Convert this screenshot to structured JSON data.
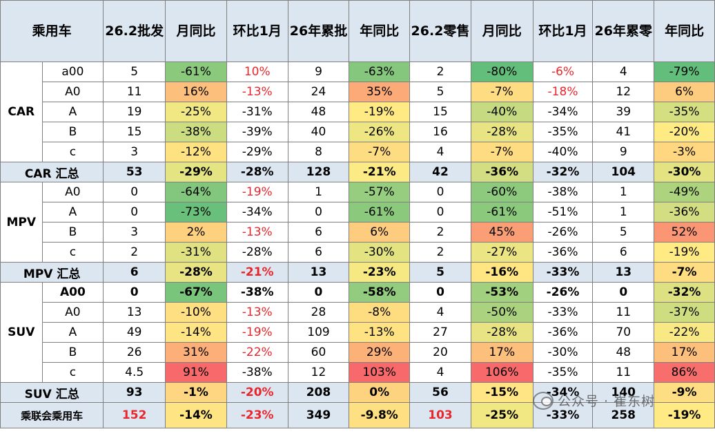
{
  "table": {
    "headers": [
      "乘用车",
      "26.2批发",
      "月同比",
      "环比1月",
      "26年累批",
      "年同比",
      "26.2零售",
      "月同比",
      "环比1月",
      "26年累零",
      "年同比"
    ],
    "groups": [
      {
        "name": "CAR",
        "rows": [
          {
            "sub": "a00",
            "c": [
              "5",
              "-61%",
              "10%",
              "9",
              "-63%",
              "2",
              "-80%",
              "-6%",
              "4",
              "-79%"
            ]
          },
          {
            "sub": "A0",
            "c": [
              "11",
              "16%",
              "-13%",
              "24",
              "35%",
              "5",
              "-7%",
              "-18%",
              "12",
              "6%"
            ]
          },
          {
            "sub": "A",
            "c": [
              "19",
              "-25%",
              "-31%",
              "48",
              "-19%",
              "15",
              "-40%",
              "-34%",
              "39",
              "-35%"
            ]
          },
          {
            "sub": "B",
            "c": [
              "15",
              "-38%",
              "-39%",
              "40",
              "-26%",
              "16",
              "-28%",
              "-35%",
              "41",
              "-20%"
            ]
          },
          {
            "sub": "c",
            "c": [
              "3",
              "-12%",
              "-29%",
              "8",
              "-7%",
              "4",
              "-7%",
              "-40%",
              "9",
              "-3%"
            ]
          }
        ],
        "summary": {
          "label": "CAR 汇总",
          "c": [
            "53",
            "-29%",
            "-28%",
            "128",
            "-21%",
            "42",
            "-36%",
            "-32%",
            "104",
            "-30%"
          ]
        }
      },
      {
        "name": "MPV",
        "rows": [
          {
            "sub": "A0",
            "c": [
              "0",
              "-64%",
              "-19%",
              "1",
              "-57%",
              "0",
              "-60%",
              "-38%",
              "1",
              "-49%"
            ]
          },
          {
            "sub": "A",
            "c": [
              "0",
              "-73%",
              "-34%",
              "0",
              "-61%",
              "0",
              "-61%",
              "-51%",
              "1",
              "-36%"
            ]
          },
          {
            "sub": "B",
            "c": [
              "3",
              "2%",
              "-13%",
              "6",
              "6%",
              "2",
              "45%",
              "-26%",
              "5",
              "52%"
            ]
          },
          {
            "sub": "c",
            "c": [
              "2",
              "-31%",
              "-28%",
              "6",
              "-30%",
              "2",
              "-27%",
              "-36%",
              "6",
              "-19%"
            ]
          }
        ],
        "summary": {
          "label": "MPV 汇总",
          "c": [
            "6",
            "-28%",
            "-21%",
            "13",
            "-23%",
            "5",
            "-16%",
            "-33%",
            "13",
            "-7%"
          ]
        }
      },
      {
        "name": "SUV",
        "rows": [
          {
            "sub": "A00",
            "c": [
              "0",
              "-67%",
              "-38%",
              "0",
              "-58%",
              "0",
              "-53%",
              "-26%",
              "0",
              "-32%"
            ]
          },
          {
            "sub": "A0",
            "c": [
              "13",
              "-10%",
              "-13%",
              "28",
              "-8%",
              "4",
              "-50%",
              "-33%",
              "11",
              "-37%"
            ]
          },
          {
            "sub": "A",
            "c": [
              "49",
              "-14%",
              "-19%",
              "109",
              "-13%",
              "27",
              "-28%",
              "-36%",
              "70",
              "-22%"
            ]
          },
          {
            "sub": "B",
            "c": [
              "26",
              "31%",
              "-22%",
              "60",
              "29%",
              "20",
              "17%",
              "-30%",
              "48",
              "17%"
            ]
          },
          {
            "sub": "c",
            "c": [
              "4.5",
              "91%",
              "-38%",
              "12",
              "103%",
              "4",
              "106%",
              "-35%",
              "11",
              "86%"
            ]
          }
        ],
        "summary": {
          "label": "SUV 汇总",
          "c": [
            "93",
            "-1%",
            "-20%",
            "208",
            "0%",
            "56",
            "-15%",
            "-34%",
            "140",
            "-9%"
          ]
        }
      }
    ],
    "total": {
      "label": "乘联会乘用车",
      "c": [
        "152",
        "-14%",
        "-23%",
        "349",
        "-9.8%",
        "103",
        "-25%",
        "-33%",
        "258",
        "-19%"
      ]
    }
  },
  "watermark": "公众号 · 崔东树",
  "colors": {
    "header_bg": "#dce6f1",
    "red_text": "#e8262c",
    "heat_green": "#63be7b",
    "heat_yellow": "#ffeb84",
    "heat_red": "#f8696b"
  }
}
